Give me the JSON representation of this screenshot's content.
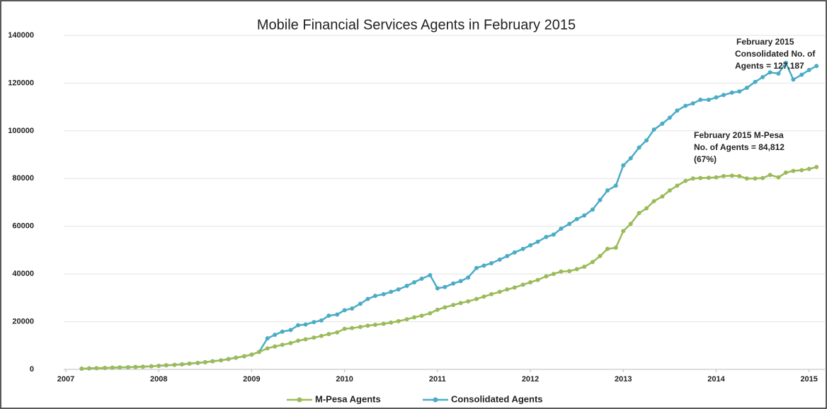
{
  "chart_data": {
    "type": "line",
    "title": "Mobile Financial Services Agents in February 2015",
    "x": [
      2007.17,
      2007.25,
      2007.33,
      2007.42,
      2007.5,
      2007.58,
      2007.67,
      2007.75,
      2007.83,
      2007.92,
      2008,
      2008.08,
      2008.17,
      2008.25,
      2008.33,
      2008.42,
      2008.5,
      2008.58,
      2008.67,
      2008.75,
      2008.83,
      2008.92,
      2009,
      2009.08,
      2009.17,
      2009.25,
      2009.33,
      2009.42,
      2009.5,
      2009.58,
      2009.67,
      2009.75,
      2009.83,
      2009.92,
      2010,
      2010.08,
      2010.17,
      2010.25,
      2010.33,
      2010.42,
      2010.5,
      2010.58,
      2010.67,
      2010.75,
      2010.83,
      2010.92,
      2011,
      2011.08,
      2011.17,
      2011.25,
      2011.33,
      2011.42,
      2011.5,
      2011.58,
      2011.67,
      2011.75,
      2011.83,
      2011.92,
      2012,
      2012.08,
      2012.17,
      2012.25,
      2012.33,
      2012.42,
      2012.5,
      2012.58,
      2012.67,
      2012.75,
      2012.83,
      2012.92,
      2013,
      2013.08,
      2013.17,
      2013.25,
      2013.33,
      2013.42,
      2013.5,
      2013.58,
      2013.67,
      2013.75,
      2013.83,
      2013.92,
      2014,
      2014.08,
      2014.17,
      2014.25,
      2014.33,
      2014.42,
      2014.5,
      2014.58,
      2014.67,
      2014.75,
      2014.83,
      2014.92,
      2015,
      2015.08
    ],
    "series": [
      {
        "name": "M-Pesa Agents",
        "color": "#9bbb59",
        "values": [
          300,
          400,
          500,
          600,
          700,
          800,
          900,
          1000,
          1100,
          1300,
          1500,
          1700,
          1900,
          2100,
          2400,
          2700,
          3000,
          3400,
          3800,
          4300,
          4900,
          5500,
          6200,
          7300,
          8800,
          9600,
          10300,
          11000,
          12000,
          12600,
          13300,
          14000,
          14800,
          15500,
          17000,
          17300,
          17800,
          18300,
          18700,
          19100,
          19600,
          20200,
          21000,
          21800,
          22500,
          23500,
          25000,
          26000,
          27000,
          27800,
          28500,
          29500,
          30500,
          31500,
          32500,
          33500,
          34300,
          35500,
          36500,
          37500,
          39000,
          40000,
          41000,
          41200,
          42000,
          43000,
          45000,
          47500,
          50500,
          51000,
          58000,
          61000,
          65500,
          67500,
          70500,
          72500,
          75000,
          77000,
          79000,
          80000,
          80200,
          80300,
          80500,
          81000,
          81200,
          81000,
          80000,
          80000,
          80200,
          81500,
          80500,
          82500,
          83200,
          83500,
          84000,
          84812
        ]
      },
      {
        "name": "Consolidated Agents",
        "color": "#4bacc6",
        "values": [
          300,
          400,
          500,
          600,
          700,
          800,
          900,
          1000,
          1100,
          1300,
          1500,
          1700,
          1900,
          2100,
          2400,
          2700,
          3000,
          3400,
          3800,
          4300,
          4900,
          5500,
          6200,
          7300,
          13000,
          14500,
          15800,
          16500,
          18500,
          18800,
          19800,
          20500,
          22500,
          23000,
          24800,
          25500,
          27500,
          29500,
          30800,
          31500,
          32500,
          33500,
          35000,
          36500,
          38000,
          39500,
          34000,
          34500,
          36000,
          37000,
          38500,
          42500,
          43500,
          44500,
          46000,
          47500,
          49000,
          50500,
          52000,
          53500,
          55500,
          56500,
          59000,
          61000,
          63000,
          64500,
          67000,
          71000,
          75000,
          77000,
          85500,
          88500,
          93000,
          96000,
          100500,
          103000,
          105500,
          108500,
          110500,
          111500,
          113000,
          113000,
          114000,
          115000,
          116000,
          116500,
          118000,
          120500,
          122500,
          124500,
          124000,
          128500,
          121500,
          123500,
          125500,
          127187
        ]
      }
    ],
    "xlim": [
      2007,
      2015.17
    ],
    "xticks": [
      2007,
      2008,
      2009,
      2010,
      2011,
      2012,
      2013,
      2014,
      2015
    ],
    "ylim": [
      0,
      140000
    ],
    "yticks": [
      0,
      20000,
      40000,
      60000,
      80000,
      100000,
      120000,
      140000
    ],
    "grid": true,
    "annotations": [
      {
        "lines": [
          "February 2015",
          "Consolidated No. of",
          "Agents  = 127,187"
        ]
      },
      {
        "lines": [
          "February 2015 M-Pesa",
          "No. of Agents  = 84,812",
          "(67%)"
        ]
      }
    ],
    "legend": "bottom"
  }
}
